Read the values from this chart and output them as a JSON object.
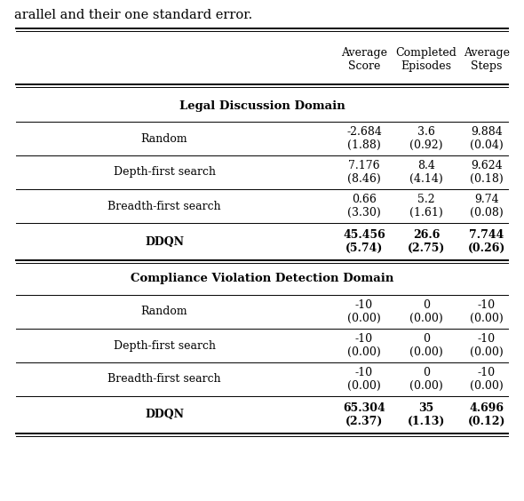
{
  "caption_text": "arallel and their one standard error.",
  "section1_title": "Legal Discussion Domain",
  "section2_title": "Compliance Violation Detection Domain",
  "col_headers": [
    "Average\nScore",
    "Completed\nEpisodes",
    "Average\nSteps"
  ],
  "rows_s1": [
    {
      "method": "Random",
      "vals": [
        "-2.684\n(1.88)",
        "3.6\n(0.92)",
        "9.884\n(0.04)"
      ],
      "bold": false
    },
    {
      "method": "Depth-first search",
      "vals": [
        "7.176\n(8.46)",
        "8.4\n(4.14)",
        "9.624\n(0.18)"
      ],
      "bold": false
    },
    {
      "method": "Breadth-first search",
      "vals": [
        "0.66\n(3.30)",
        "5.2\n(1.61)",
        "9.74\n(0.08)"
      ],
      "bold": false
    },
    {
      "method": "DDQN",
      "vals": [
        "45.456\n(5.74)",
        "26.6\n(2.75)",
        "7.744\n(0.26)"
      ],
      "bold": true
    }
  ],
  "rows_s2": [
    {
      "method": "Random",
      "vals": [
        "-10\n(0.00)",
        "0\n(0.00)",
        "-10\n(0.00)"
      ],
      "bold": false
    },
    {
      "method": "Depth-first search",
      "vals": [
        "-10\n(0.00)",
        "0\n(0.00)",
        "-10\n(0.00)"
      ],
      "bold": false
    },
    {
      "method": "Breadth-first search",
      "vals": [
        "-10\n(0.00)",
        "0\n(0.00)",
        "-10\n(0.00)"
      ],
      "bold": false
    },
    {
      "method": "DDQN",
      "vals": [
        "65.304\n(2.37)",
        "35\n(1.13)",
        "4.696\n(0.12)"
      ],
      "bold": true
    }
  ],
  "font_size": 9.0,
  "section_font_size": 9.5,
  "caption_font_size": 10.5,
  "fig_width": 5.9,
  "fig_height": 5.64,
  "dpi": 100
}
